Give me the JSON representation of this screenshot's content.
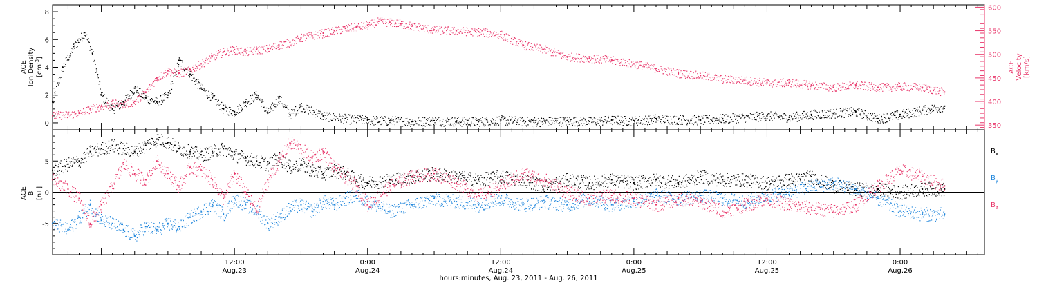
{
  "colors": {
    "density": "#000000",
    "velocity": "#e8366a",
    "bx": "#000000",
    "by": "#1f86dc",
    "bz": "#e8366a",
    "axis": "#000000"
  },
  "x_axis": {
    "title": "hours:minutes, Aug. 23, 2011 - Aug. 26, 2011",
    "range_hours": [
      -4.4,
      79.6
    ],
    "ticks": [
      {
        "hours": 12,
        "time": "12:00",
        "date": "Aug.23"
      },
      {
        "hours": 24,
        "time": "0:00",
        "date": "Aug.24"
      },
      {
        "hours": 36,
        "time": "12:00",
        "date": "Aug.24"
      },
      {
        "hours": 48,
        "time": "0:00",
        "date": "Aug.25"
      },
      {
        "hours": 60,
        "time": "12:00",
        "date": "Aug.25"
      },
      {
        "hours": 72,
        "time": "0:00",
        "date": "Aug.26"
      }
    ]
  },
  "panel1": {
    "left_label": {
      "line1": "ACE",
      "line2": "Ion Density",
      "line3": "[cm",
      "sup": "-3",
      "close": "]"
    },
    "right_label": {
      "line1": "ACE",
      "line2": "Velocity",
      "line3": "[km/s]"
    },
    "left_ticks": [
      "0",
      "2",
      "4",
      "6",
      "8"
    ],
    "right_ticks": [
      "350",
      "400",
      "450",
      "500",
      "550",
      "600"
    ]
  },
  "panel2": {
    "left_label": {
      "line1": "ACE",
      "line2": "B",
      "line3": "[nT]"
    },
    "left_ticks": [
      "-5",
      "0",
      "5"
    ],
    "legend": [
      {
        "main": "B",
        "sub": "x",
        "color": "#000000"
      },
      {
        "main": "B",
        "sub": "y",
        "color": "#1f86dc"
      },
      {
        "main": "B",
        "sub": "z",
        "color": "#e8366a"
      }
    ]
  },
  "chart_data": [
    {
      "type": "scatter",
      "title": "",
      "xlabel": "hours:minutes, Aug. 23, 2011 - Aug. 26, 2011",
      "ylabel": "ACE Ion Density [cm-3]",
      "y2label": "ACE Velocity [km/s]",
      "x_units": "hours since 0:00 Aug. 23, 2011",
      "ylim": [
        -0.5,
        8.5
      ],
      "y2lim": [
        340,
        605
      ],
      "series": [
        {
          "name": "Ion Density",
          "axis": "left",
          "x": [
            -4.4,
            -3.5,
            -2.5,
            -1.5,
            -0.8,
            0,
            1,
            2,
            3,
            4,
            5,
            6,
            7,
            8,
            9,
            10,
            11,
            12,
            13,
            14,
            15,
            16,
            17,
            18,
            20,
            22,
            24,
            26,
            28,
            30,
            32,
            34,
            36,
            38,
            40,
            42,
            44,
            46,
            48,
            50,
            52,
            54,
            56,
            58,
            60,
            62,
            64,
            66,
            68,
            70,
            72,
            74,
            76
          ],
          "y": [
            1.5,
            4.0,
            5.5,
            6.5,
            5.0,
            2.0,
            1.0,
            1.5,
            2.5,
            1.8,
            1.5,
            2.0,
            4.5,
            3.5,
            2.5,
            1.8,
            1.0,
            0.8,
            1.5,
            2.0,
            0.7,
            1.8,
            0.6,
            1.2,
            0.5,
            0.3,
            0.2,
            0.15,
            0.1,
            0.15,
            0.1,
            0.1,
            0.2,
            0.1,
            0.1,
            0.15,
            0.1,
            0.2,
            0.15,
            0.3,
            0.25,
            0.2,
            0.3,
            0.4,
            0.5,
            0.4,
            0.6,
            0.7,
            0.8,
            0.3,
            0.6,
            0.9,
            1.2
          ]
        },
        {
          "name": "Velocity",
          "axis": "right",
          "x": [
            -4.4,
            -3,
            -2,
            -1,
            0,
            1,
            2,
            3,
            4,
            5,
            6,
            7,
            8,
            9,
            10,
            11,
            12,
            13,
            14,
            15,
            16,
            17,
            18,
            19,
            20,
            21,
            22,
            23,
            24,
            25,
            26,
            27,
            28,
            30,
            32,
            34,
            36,
            38,
            40,
            42,
            44,
            46,
            48,
            50,
            52,
            54,
            56,
            58,
            60,
            62,
            64,
            66,
            68,
            70,
            72,
            74,
            76
          ],
          "y": [
            370,
            372,
            375,
            385,
            390,
            395,
            395,
            400,
            420,
            450,
            465,
            460,
            468,
            480,
            495,
            505,
            510,
            505,
            510,
            512,
            520,
            525,
            535,
            540,
            545,
            550,
            555,
            558,
            562,
            570,
            568,
            565,
            560,
            552,
            550,
            548,
            542,
            520,
            510,
            495,
            492,
            488,
            480,
            470,
            460,
            455,
            448,
            445,
            440,
            440,
            435,
            430,
            435,
            430,
            432,
            430,
            420
          ]
        }
      ]
    },
    {
      "type": "scatter",
      "title": "",
      "xlabel": "hours:minutes, Aug. 23, 2011 - Aug. 26, 2011",
      "ylabel": "ACE B [nT]",
      "x_units": "hours since 0:00 Aug. 23, 2011",
      "ylim": [
        -10,
        10
      ],
      "series": [
        {
          "name": "Bx",
          "x": [
            -4.4,
            -3,
            -2,
            -1,
            0,
            1,
            2,
            3,
            4,
            5,
            6,
            7,
            8,
            9,
            10,
            11,
            12,
            13,
            14,
            15,
            16,
            17,
            18,
            19,
            20,
            21,
            22,
            23,
            24,
            26,
            28,
            30,
            32,
            34,
            36,
            38,
            40,
            42,
            44,
            46,
            48,
            50,
            52,
            54,
            56,
            58,
            60,
            62,
            64,
            66,
            68,
            70,
            72,
            74,
            76
          ],
          "y": [
            3.5,
            4.5,
            5.0,
            6.5,
            7.0,
            7.5,
            7.0,
            6.5,
            7.5,
            8.5,
            8.0,
            7.0,
            6.5,
            6.0,
            6.5,
            7.0,
            6.0,
            5.5,
            5.0,
            4.5,
            5.5,
            4.0,
            4.5,
            3.5,
            3.0,
            3.5,
            3.0,
            2.0,
            1.5,
            2.0,
            2.5,
            3.0,
            2.5,
            2.0,
            2.5,
            2.0,
            1.0,
            2.0,
            1.5,
            2.0,
            1.5,
            2.0,
            1.5,
            2.5,
            2.0,
            2.0,
            1.5,
            2.0,
            2.5,
            1.0,
            0.5,
            0.5,
            0.0,
            0.5,
            0.5
          ]
        },
        {
          "name": "By",
          "x": [
            -4.4,
            -3,
            -2,
            -1,
            0,
            1,
            2,
            3,
            4,
            5,
            6,
            7,
            8,
            9,
            10,
            11,
            12,
            13,
            14,
            15,
            16,
            17,
            18,
            19,
            20,
            21,
            22,
            23,
            24,
            26,
            28,
            30,
            32,
            34,
            36,
            38,
            40,
            42,
            44,
            46,
            48,
            50,
            52,
            54,
            56,
            58,
            60,
            62,
            64,
            66,
            68,
            70,
            72,
            74,
            76
          ],
          "y": [
            -5.0,
            -6.0,
            -4.0,
            -2.0,
            -4.5,
            -5.0,
            -6.0,
            -7.0,
            -5.5,
            -6.0,
            -5.0,
            -5.5,
            -4.0,
            -3.0,
            -2.0,
            -3.5,
            -1.0,
            -2.0,
            -3.0,
            -5.0,
            -4.0,
            -2.5,
            -2.0,
            -3.0,
            -1.5,
            -2.0,
            -1.0,
            -0.5,
            -1.5,
            -3.0,
            -2.0,
            -1.0,
            -1.5,
            -2.0,
            -1.0,
            -2.0,
            -1.5,
            -2.0,
            -1.0,
            -2.0,
            -1.5,
            -0.5,
            -1.0,
            -0.5,
            -1.0,
            -1.5,
            -0.5,
            0.0,
            1.0,
            1.5,
            0.5,
            -1.0,
            -3.0,
            -3.5,
            -3.5
          ]
        },
        {
          "name": "Bz",
          "x": [
            -4.4,
            -3,
            -2,
            -1,
            0,
            1,
            2,
            3,
            4,
            5,
            6,
            7,
            8,
            9,
            10,
            11,
            12,
            13,
            14,
            15,
            16,
            17,
            18,
            19,
            20,
            21,
            22,
            23,
            24,
            26,
            28,
            30,
            32,
            34,
            36,
            38,
            40,
            42,
            44,
            46,
            48,
            50,
            52,
            54,
            56,
            58,
            60,
            62,
            64,
            66,
            68,
            70,
            72,
            74,
            76
          ],
          "y": [
            2.0,
            0.5,
            -1.0,
            -5.0,
            -2.0,
            1.0,
            4.5,
            3.0,
            2.0,
            5.0,
            3.0,
            1.0,
            4.0,
            3.5,
            2.0,
            -1.0,
            3.0,
            0.0,
            -3.0,
            2.0,
            5.0,
            8.0,
            7.0,
            5.5,
            6.5,
            4.0,
            2.5,
            1.0,
            -2.0,
            1.0,
            2.5,
            3.0,
            1.5,
            -0.5,
            1.0,
            3.0,
            2.0,
            0.0,
            -1.0,
            -0.5,
            -1.0,
            -2.0,
            -1.0,
            -1.5,
            -3.0,
            -2.0,
            -1.0,
            -2.0,
            -2.5,
            -3.0,
            -2.0,
            1.0,
            3.5,
            2.5,
            1.0
          ]
        }
      ]
    }
  ]
}
